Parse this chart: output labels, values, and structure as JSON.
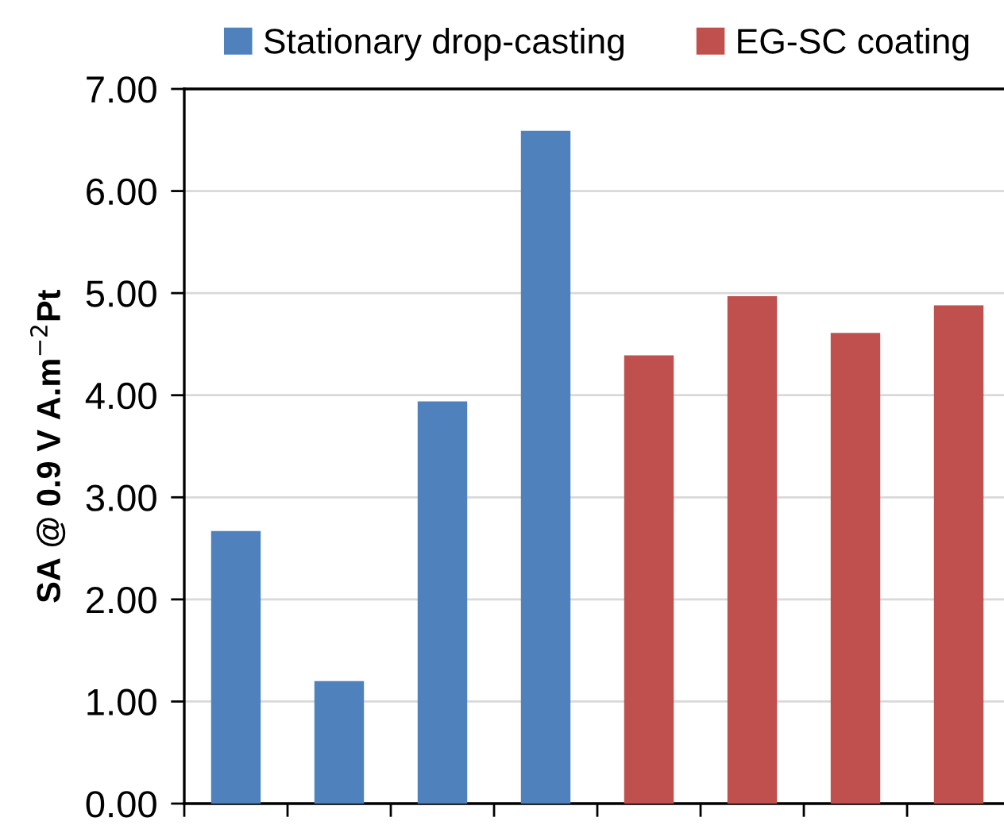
{
  "chart_data": {
    "type": "bar",
    "ylabel": "SA @ 0.9 V A.m$^{−2}$Pt",
    "categories": [
      null,
      null,
      null,
      null,
      null,
      null,
      null,
      null
    ],
    "series": [
      {
        "name": "Stationary drop-casting",
        "color": "#4f81bd",
        "values": [
          2.67,
          1.2,
          3.94,
          6.59,
          null,
          null,
          null,
          null
        ]
      },
      {
        "name": "EG-SC coating",
        "color": "#c0504d",
        "values": [
          null,
          null,
          null,
          null,
          4.39,
          4.97,
          4.61,
          4.88
        ]
      }
    ],
    "ylim": [
      0,
      7
    ],
    "yticks": [
      {
        "value": 0,
        "label": "0.00"
      },
      {
        "value": 1,
        "label": "1.00"
      },
      {
        "value": 2,
        "label": "2.00"
      },
      {
        "value": 3,
        "label": "3.00"
      },
      {
        "value": 4,
        "label": "4.00"
      },
      {
        "value": 5,
        "label": "5.00"
      },
      {
        "value": 6,
        "label": "6.00"
      },
      {
        "value": 7,
        "label": "7.00"
      }
    ],
    "grid": "y",
    "legend": "top"
  }
}
